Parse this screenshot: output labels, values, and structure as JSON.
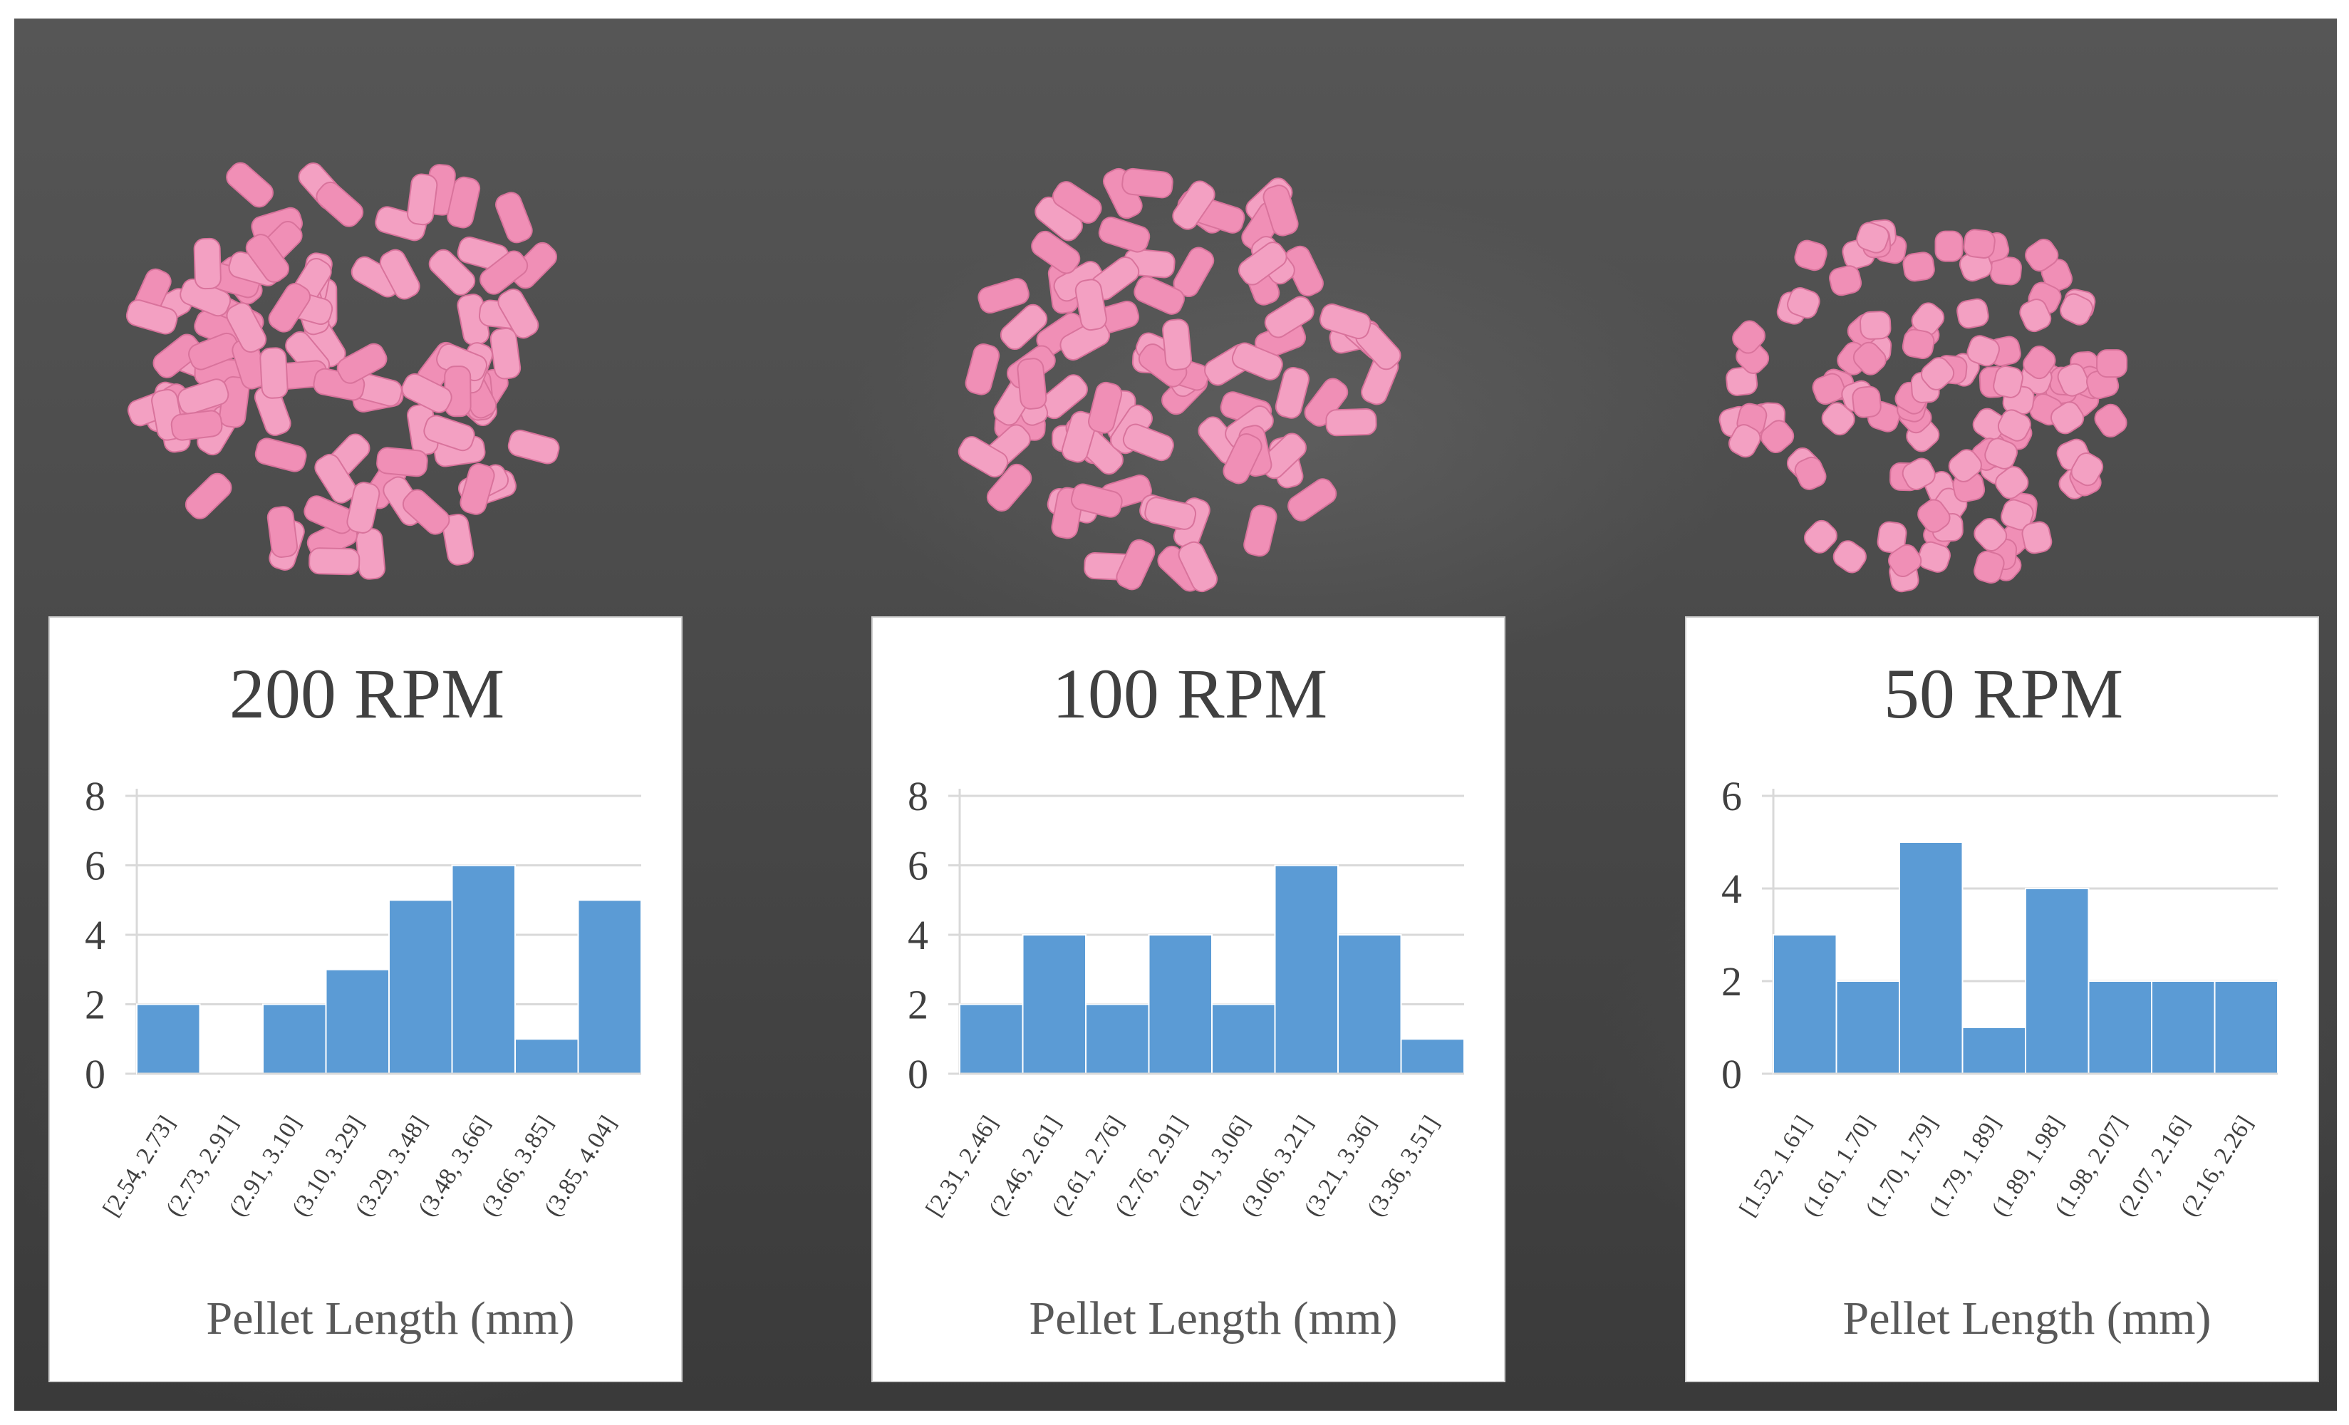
{
  "chart_data": [
    {
      "type": "bar",
      "title": "200 RPM",
      "xlabel": "Pellet Length (mm)",
      "ylabel": "",
      "categories": [
        "[2.54, 2.73]",
        "(2.73, 2.91]",
        "(2.91, 3.10]",
        "(3.10, 3.29]",
        "(3.29, 3.48]",
        "(3.48, 3.66]",
        "(3.66, 3.85]",
        "(3.85, 4.04]"
      ],
      "values": [
        2,
        0,
        2,
        3,
        5,
        6,
        1,
        5
      ],
      "ylim": [
        0,
        8
      ],
      "yticks": [
        0,
        2,
        4,
        6,
        8
      ],
      "grid": true,
      "color": "#5b9bd5"
    },
    {
      "type": "bar",
      "title": "100 RPM",
      "xlabel": "Pellet Length (mm)",
      "ylabel": "",
      "categories": [
        "[2.31, 2.46]",
        "(2.46, 2.61]",
        "(2.61, 2.76]",
        "(2.76, 2.91]",
        "(2.91, 3.06]",
        "(3.06, 3.21]",
        "(3.21, 3.36]",
        "(3.36, 3.51]"
      ],
      "values": [
        2,
        4,
        2,
        4,
        2,
        6,
        4,
        1
      ],
      "ylim": [
        0,
        8
      ],
      "yticks": [
        0,
        2,
        4,
        6,
        8
      ],
      "grid": true,
      "color": "#5b9bd5"
    },
    {
      "type": "bar",
      "title": "50 RPM",
      "xlabel": "Pellet Length (mm)",
      "ylabel": "",
      "categories": [
        "[1.52, 1.61]",
        "(1.61, 1.70]",
        "(1.70, 1.79]",
        "(1.79, 1.89]",
        "(1.89, 1.98]",
        "(1.98, 2.07]",
        "(2.07, 2.16]",
        "(2.16, 2.26]"
      ],
      "values": [
        3,
        2,
        5,
        1,
        4,
        2,
        2,
        2
      ],
      "ylim": [
        0,
        6
      ],
      "yticks": [
        0,
        2,
        4,
        6
      ],
      "grid": true,
      "color": "#5b9bd5"
    }
  ]
}
